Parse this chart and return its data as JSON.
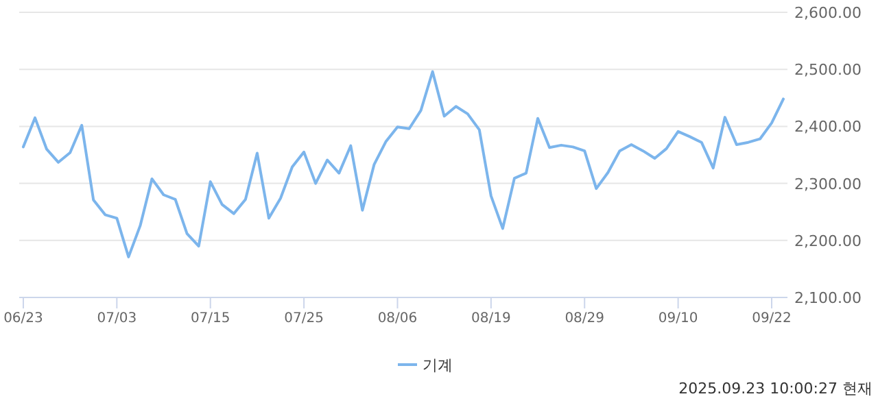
{
  "chart_data": {
    "type": "line",
    "categories": [
      "06/23",
      null,
      null,
      null,
      null,
      null,
      null,
      null,
      "07/03",
      null,
      null,
      null,
      null,
      null,
      null,
      null,
      "07/15",
      null,
      null,
      null,
      null,
      null,
      null,
      null,
      "07/25",
      null,
      null,
      null,
      null,
      null,
      null,
      null,
      "08/06",
      null,
      null,
      null,
      null,
      null,
      null,
      null,
      "08/19",
      null,
      null,
      null,
      null,
      null,
      null,
      null,
      "08/29",
      null,
      null,
      null,
      null,
      null,
      null,
      null,
      "09/10",
      null,
      null,
      null,
      null,
      null,
      null,
      null,
      "09/22",
      null
    ],
    "series": [
      {
        "name": "기계",
        "color": "#7cb5ec",
        "values": [
          2364,
          2415,
          2360,
          2337,
          2354,
          2402,
          2271,
          2245,
          2239,
          2171,
          2226,
          2308,
          2280,
          2272,
          2212,
          2190,
          2303,
          2263,
          2247,
          2272,
          2353,
          2239,
          2274,
          2329,
          2355,
          2300,
          2341,
          2318,
          2366,
          2253,
          2333,
          2373,
          2399,
          2396,
          2428,
          2496,
          2418,
          2435,
          2422,
          2394,
          2278,
          2221,
          2309,
          2318,
          2414,
          2363,
          2367,
          2364,
          2357,
          2291,
          2319,
          2357,
          2368,
          2357,
          2344,
          2361,
          2391,
          2382,
          2372,
          2327,
          2416,
          2368,
          2372,
          2378,
          2406,
          2448
        ]
      }
    ],
    "ylim": [
      2100,
      2600
    ],
    "yticks": [
      {
        "value": 2100,
        "label": "2,100.00"
      },
      {
        "value": 2200,
        "label": "2,200.00"
      },
      {
        "value": 2300,
        "label": "2,300.00"
      },
      {
        "value": 2400,
        "label": "2,400.00"
      },
      {
        "value": 2500,
        "label": "2,500.00"
      },
      {
        "value": 2600,
        "label": "2,600.00"
      }
    ],
    "grid": "y",
    "legend": "bottom",
    "annotations": [
      "2025.09.23 10:00:27 현재"
    ]
  }
}
